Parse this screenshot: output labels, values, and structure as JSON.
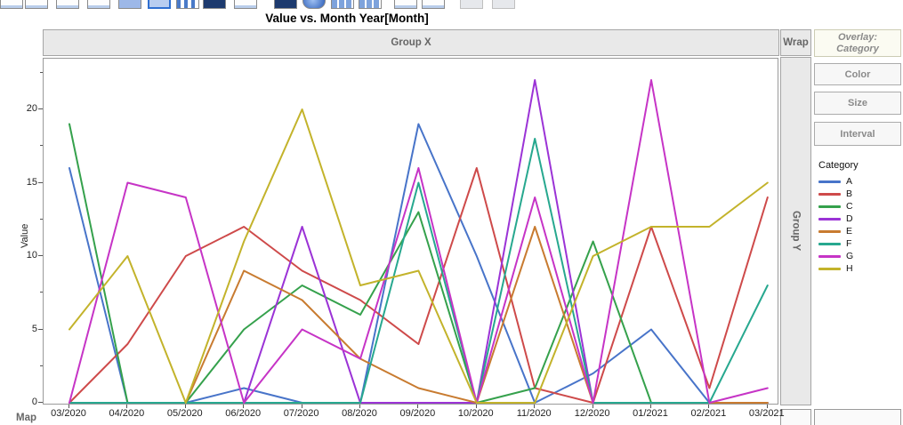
{
  "window": {
    "title": "Value vs. Month Year[Month]"
  },
  "toolbar": {
    "icons": [
      {
        "name": "show-points-icon",
        "x": 0,
        "type": "white"
      },
      {
        "name": "smoother-icon",
        "x": 28,
        "type": "white"
      },
      {
        "name": "line-of-fit-icon",
        "x": 63,
        "type": "white"
      },
      {
        "name": "ellipse-icon",
        "x": 98,
        "type": "white"
      },
      {
        "name": "contour-icon",
        "x": 133,
        "type": "lightblue"
      },
      {
        "name": "line-chart-icon",
        "x": 166,
        "type": "selected"
      },
      {
        "name": "bar-chart-icon",
        "x": 198,
        "type": "columns"
      },
      {
        "name": "area-chart-icon",
        "x": 228,
        "type": "navy"
      },
      {
        "name": "histogram-icon",
        "x": 263,
        "type": "white"
      },
      {
        "name": "heatmap-icon",
        "x": 308,
        "type": "navy"
      },
      {
        "name": "pie-chart-icon",
        "x": 340,
        "type": "sphere"
      },
      {
        "name": "treemap-icon",
        "x": 372,
        "type": "grid"
      },
      {
        "name": "mosaic-icon",
        "x": 403,
        "type": "grid"
      },
      {
        "name": "caption-box-icon",
        "x": 443,
        "type": "white"
      },
      {
        "name": "formula-icon",
        "x": 474,
        "type": "white"
      },
      {
        "name": "map-shape-icon",
        "x": 517,
        "type": "pale"
      },
      {
        "name": "parallel-plot-icon",
        "x": 553,
        "type": "pale"
      }
    ]
  },
  "drop_zones": {
    "group_x": "Group X",
    "wrap": "Wrap",
    "group_y": "Group Y",
    "map": "Map",
    "overlay_line1": "Overlay:",
    "overlay_line2": "Category",
    "color": "Color",
    "size": "Size",
    "interval": "Interval"
  },
  "legend": {
    "title": "Category",
    "items": [
      {
        "label": "A",
        "color": "#4874C9"
      },
      {
        "label": "B",
        "color": "#CE4A4A"
      },
      {
        "label": "C",
        "color": "#35A14C"
      },
      {
        "label": "D",
        "color": "#9B33D6"
      },
      {
        "label": "E",
        "color": "#C87B30"
      },
      {
        "label": "F",
        "color": "#27A88F"
      },
      {
        "label": "G",
        "color": "#C634C6"
      },
      {
        "label": "H",
        "color": "#C3B32B"
      }
    ]
  },
  "axes": {
    "y_label": "Value",
    "y_ticks": [
      0,
      5,
      10,
      15,
      20
    ],
    "y_minor_ticks": [
      2.5,
      7.5,
      12.5,
      17.5,
      22.5
    ]
  },
  "chart_data": {
    "type": "line",
    "title": "Value vs. Month Year[Month]",
    "xlabel": "Month Year[Month]",
    "ylabel": "Value",
    "ylim": [
      0,
      23.3
    ],
    "grid": false,
    "legend_position": "right",
    "categories": [
      "03/2020",
      "04/2020",
      "05/2020",
      "06/2020",
      "07/2020",
      "08/2020",
      "09/2020",
      "10/2020",
      "11/2020",
      "12/2020",
      "01/2021",
      "02/2021",
      "03/2021"
    ],
    "series": [
      {
        "name": "A",
        "color": "#4874C9",
        "values": [
          16,
          0,
          0,
          1,
          0,
          0,
          19,
          10,
          0,
          2,
          5,
          0,
          0
        ]
      },
      {
        "name": "B",
        "color": "#CE4A4A",
        "values": [
          0,
          4,
          10,
          12,
          9,
          7,
          4,
          16,
          1,
          0,
          12,
          1,
          14
        ]
      },
      {
        "name": "C",
        "color": "#35A14C",
        "values": [
          19,
          0,
          0,
          5,
          8,
          6,
          13,
          0,
          1,
          11,
          0,
          0,
          0
        ]
      },
      {
        "name": "D",
        "color": "#9B33D6",
        "values": [
          0,
          0,
          0,
          0,
          12,
          0,
          0,
          0,
          22,
          0,
          0,
          0,
          0
        ]
      },
      {
        "name": "E",
        "color": "#C87B30",
        "values": [
          0,
          0,
          0,
          9,
          7,
          3,
          1,
          0,
          12,
          0,
          0,
          0,
          0
        ]
      },
      {
        "name": "F",
        "color": "#27A88F",
        "values": [
          0,
          0,
          0,
          0,
          0,
          0,
          15,
          0,
          18,
          0,
          0,
          0,
          8
        ]
      },
      {
        "name": "G",
        "color": "#C634C6",
        "values": [
          0,
          15,
          14,
          0,
          5,
          3,
          16,
          0,
          14,
          0,
          22,
          0,
          1
        ]
      },
      {
        "name": "H",
        "color": "#C3B32B",
        "values": [
          5,
          10,
          0,
          11,
          20,
          8,
          9,
          0,
          0,
          10,
          12,
          12,
          15
        ]
      }
    ]
  }
}
